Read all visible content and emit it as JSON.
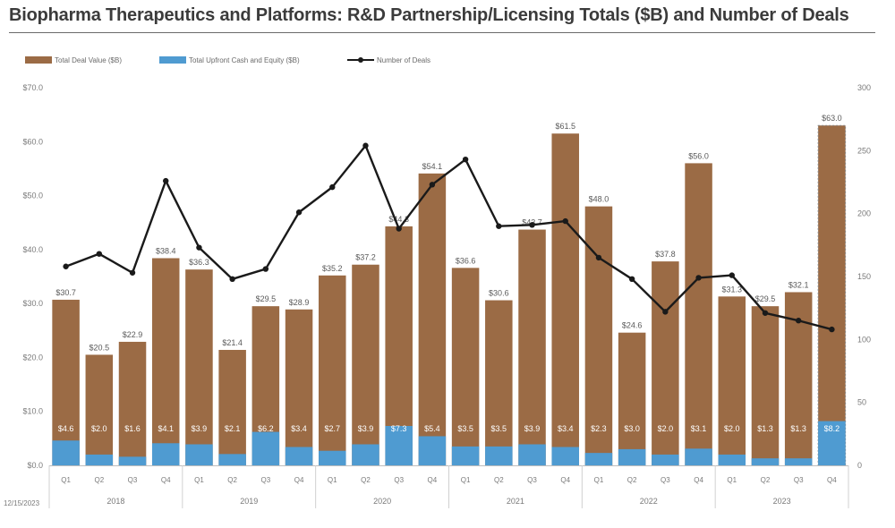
{
  "chart_data": {
    "type": "bar",
    "title": "Biopharma Therapeutics and Platforms: R&D Partnership/Licensing Totals ($B) and Number of Deals",
    "footnote": "12/15/2023",
    "categories": [
      "Q1",
      "Q2",
      "Q3",
      "Q4",
      "Q1",
      "Q2",
      "Q3",
      "Q4",
      "Q1",
      "Q2",
      "Q3",
      "Q4",
      "Q1",
      "Q2",
      "Q3",
      "Q4",
      "Q1",
      "Q2",
      "Q3",
      "Q4",
      "Q1",
      "Q2",
      "Q3",
      "Q4"
    ],
    "years": [
      "2018",
      "2019",
      "2020",
      "2021",
      "2022",
      "2023"
    ],
    "series": [
      {
        "name": "Total Deal Value ($B)",
        "type": "bar",
        "color": "#9b6b45",
        "values": [
          30.7,
          20.5,
          22.9,
          38.4,
          36.3,
          21.4,
          29.5,
          28.9,
          35.2,
          37.2,
          44.3,
          54.1,
          36.6,
          30.6,
          43.7,
          61.5,
          48.0,
          24.6,
          37.8,
          56.0,
          31.3,
          29.5,
          32.1,
          63.0
        ],
        "labels": [
          "$30.7",
          "$20.5",
          "$22.9",
          "$38.4",
          "$36.3",
          "$21.4",
          "$29.5",
          "$28.9",
          "$35.2",
          "$37.2",
          "$44.3",
          "$54.1",
          "$36.6",
          "$30.6",
          "$43.7",
          "$61.5",
          "$48.0",
          "$24.6",
          "$37.8",
          "$56.0",
          "$31.3",
          "$29.5",
          "$32.1",
          "$63.0"
        ]
      },
      {
        "name": "Total Upfront Cash and Equity ($B)",
        "type": "bar",
        "color": "#4f9bd1",
        "values": [
          4.6,
          2.0,
          1.6,
          4.1,
          3.9,
          2.1,
          6.2,
          3.4,
          2.7,
          3.9,
          7.3,
          5.4,
          3.5,
          3.5,
          3.9,
          3.4,
          2.3,
          3.0,
          2.0,
          3.1,
          2.0,
          1.3,
          1.3,
          8.2
        ],
        "labels": [
          "$4.6",
          "$2.0",
          "$1.6",
          "$4.1",
          "$3.9",
          "$2.1",
          "$6.2",
          "$3.4",
          "$2.7",
          "$3.9",
          "$7.3",
          "$5.4",
          "$3.5",
          "$3.5",
          "$3.9",
          "$3.4",
          "$2.3",
          "$3.0",
          "$2.0",
          "$3.1",
          "$2.0",
          "$1.3",
          "$1.3",
          "$8.2"
        ]
      },
      {
        "name": "Number of Deals",
        "type": "line",
        "axis": "right",
        "color": "#1a1a1a",
        "values": [
          158,
          168,
          153,
          226,
          173,
          148,
          156,
          201,
          221,
          254,
          188,
          223,
          243,
          190,
          191,
          194,
          165,
          148,
          122,
          149,
          151,
          121,
          115,
          108
        ]
      }
    ],
    "y_left": {
      "range": [
        0,
        70
      ],
      "ticks": [
        "$0.0",
        "$10.0",
        "$20.0",
        "$30.0",
        "$40.0",
        "$50.0",
        "$60.0",
        "$70.0"
      ]
    },
    "y_right": {
      "range": [
        0,
        300
      ],
      "ticks": [
        "0",
        "50",
        "100",
        "150",
        "200",
        "250",
        "300"
      ]
    },
    "grid": false,
    "legend_position": "top-left"
  }
}
